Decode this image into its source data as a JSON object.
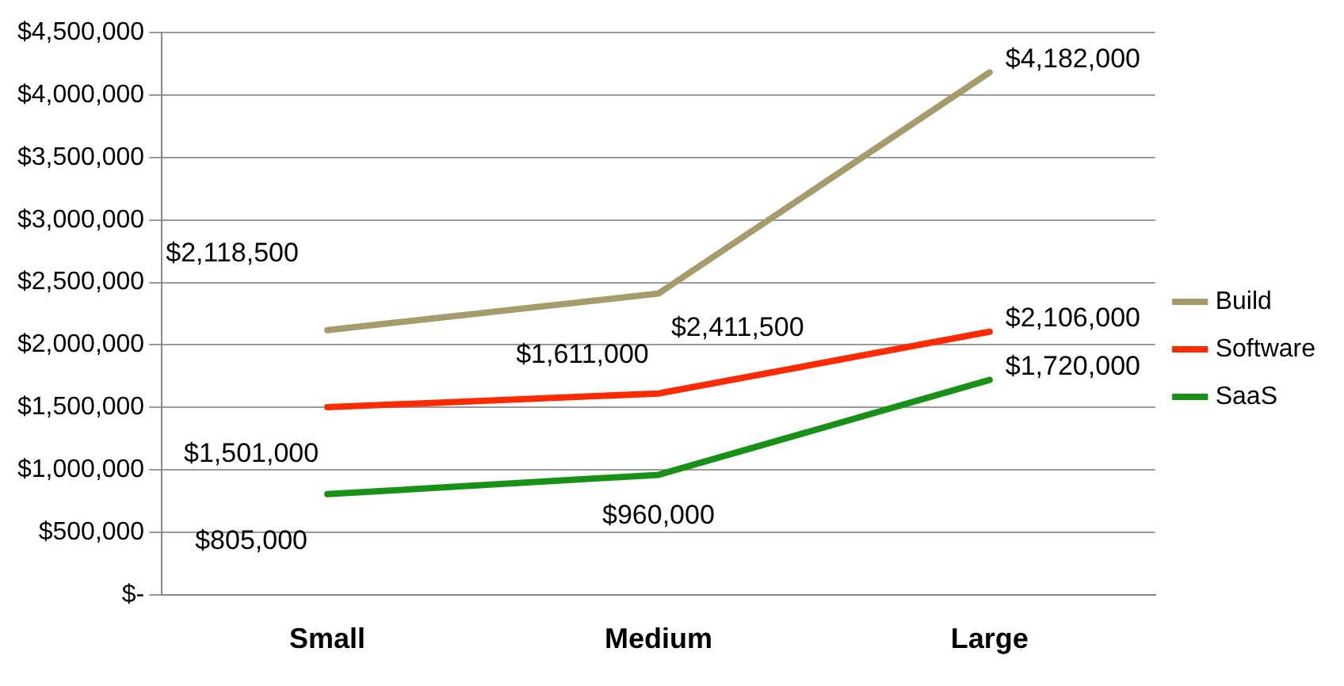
{
  "chart_data": {
    "type": "line",
    "categories": [
      "Small",
      "Medium",
      "Large"
    ],
    "series": [
      {
        "name": "Build",
        "color": "#a69c6b",
        "values": [
          2118500,
          2411500,
          4182000
        ],
        "value_labels": [
          "$2,118,500",
          "$2,411,500",
          "$4,182,000"
        ]
      },
      {
        "name": "Software",
        "color": "#ff2a00",
        "values": [
          1501000,
          1611000,
          2106000
        ],
        "value_labels": [
          "$1,501,000",
          "$1,611,000",
          "$2,106,000"
        ]
      },
      {
        "name": "SaaS",
        "color": "#179217",
        "values": [
          805000,
          960000,
          1720000
        ],
        "value_labels": [
          "$805,000",
          "$960,000",
          "$1,720,000"
        ]
      }
    ],
    "ylim": [
      0,
      4500000
    ],
    "yticks": [
      {
        "value": 0,
        "label": "$-"
      },
      {
        "value": 500000,
        "label": "$500,000"
      },
      {
        "value": 1000000,
        "label": "$1,000,000"
      },
      {
        "value": 1500000,
        "label": "$1,500,000"
      },
      {
        "value": 2000000,
        "label": "$2,000,000"
      },
      {
        "value": 2500000,
        "label": "$2,500,000"
      },
      {
        "value": 3000000,
        "label": "$3,000,000"
      },
      {
        "value": 3500000,
        "label": "$3,500,000"
      },
      {
        "value": 4000000,
        "label": "$4,000,000"
      },
      {
        "value": 4500000,
        "label": "$4,500,000"
      }
    ],
    "grid": "y",
    "legend": "right",
    "marker": "none",
    "line_style": "solid"
  }
}
